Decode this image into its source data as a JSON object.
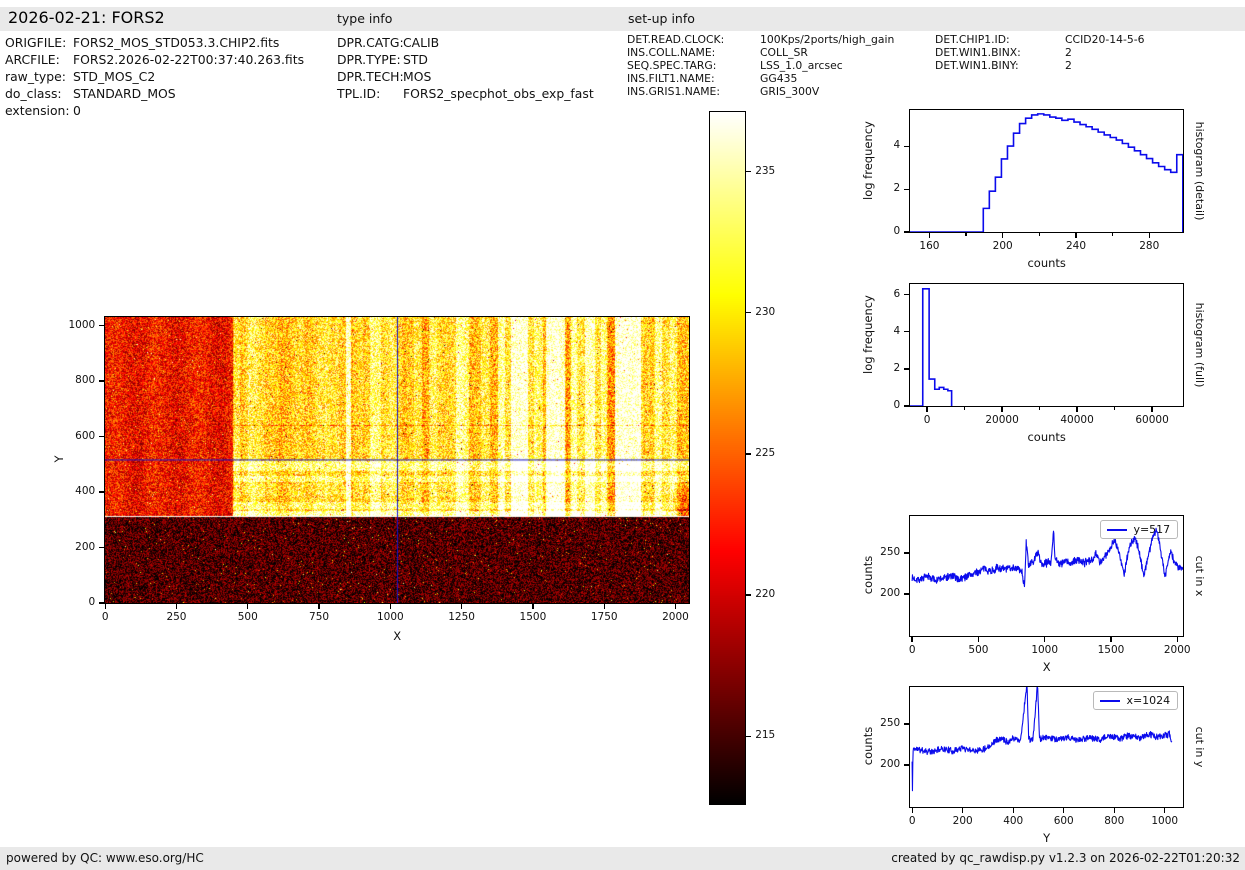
{
  "header": {
    "title": "2026-02-21: FORS2"
  },
  "file_info": {
    "rows": [
      {
        "key": "ORIGFILE:",
        "value": "FORS2_MOS_STD053.3.CHIP2.fits"
      },
      {
        "key": "ARCFILE:",
        "value": "FORS2.2026-02-22T00:37:40.263.fits"
      },
      {
        "key": "raw_type:",
        "value": "STD_MOS_C2"
      },
      {
        "key": "do_class:",
        "value": "STANDARD_MOS"
      },
      {
        "key": "extension:",
        "value": "0"
      }
    ]
  },
  "type_info": {
    "heading": "type info",
    "rows": [
      {
        "key": "DPR.CATG:",
        "value": "CALIB"
      },
      {
        "key": "DPR.TYPE:",
        "value": "STD"
      },
      {
        "key": "DPR.TECH:",
        "value": "MOS"
      },
      {
        "key": "TPL.ID:",
        "value": "FORS2_specphot_obs_exp_fast"
      }
    ]
  },
  "setup_info": {
    "heading": "set-up info",
    "col1": [
      {
        "key": "DET.READ.CLOCK:",
        "value": "100Kps/2ports/high_gain"
      },
      {
        "key": "INS.COLL.NAME:",
        "value": "COLL_SR"
      },
      {
        "key": "SEQ.SPEC.TARG:",
        "value": "LSS_1.0_arcsec"
      },
      {
        "key": "INS.FILT1.NAME:",
        "value": "GG435"
      },
      {
        "key": "INS.GRIS1.NAME:",
        "value": "GRIS_300V"
      }
    ],
    "col2": [
      {
        "key": "DET.CHIP1.ID:",
        "value": "CCID20-14-5-6"
      },
      {
        "key": "DET.WIN1.BINX:",
        "value": "2"
      },
      {
        "key": "DET.WIN1.BINY:",
        "value": "2"
      }
    ]
  },
  "footer": {
    "left": "powered by QC: www.eso.org/HC",
    "right": "created by qc_rawdisp.py v1.2.3 on 2026-02-22T01:20:32"
  },
  "colors": {
    "line": "#0b0bec",
    "crosshair": "#1212cc",
    "band_bg": "#e9e9e9"
  },
  "chart_data": [
    {
      "id": "raw_image",
      "type": "heatmap",
      "xlabel": "X",
      "ylabel": "Y",
      "xlim": [
        0,
        2048
      ],
      "ylim": [
        0,
        1030
      ],
      "xticks": [
        0,
        250,
        500,
        750,
        1000,
        1250,
        1500,
        1750,
        2000
      ],
      "yticks": [
        0,
        200,
        400,
        600,
        800,
        1000
      ],
      "colormap": "hot",
      "value_range": [
        212.6,
        237.1
      ],
      "crosshair": {
        "x": 1024,
        "y": 517
      },
      "features": {
        "white_row_y": 310,
        "dark_row_y": 640,
        "regions": [
          {
            "name": "bottom-dark-band",
            "y0": 0,
            "y1": 308,
            "x0": 0,
            "x1": 2048,
            "base": 215.3,
            "noise": 4.2,
            "salt": 0.012,
            "salt_boost": 10
          },
          {
            "name": "left-moderate",
            "y0": 312,
            "y1": 1030,
            "x0": 0,
            "x1": 450,
            "base": 221.8,
            "noise": 4.5,
            "salt": 0.012,
            "salt_boost": 7
          },
          {
            "name": "bright-spectral",
            "y0": 312,
            "y1": 1030,
            "x0": 450,
            "x1": 2048,
            "base": 229.2,
            "noise": 5.4,
            "pepper": 0.01,
            "pepper_drop": 9
          }
        ],
        "stripes": [
          [
            452,
            472,
            3
          ],
          [
            500,
            560,
            1.5
          ],
          [
            620,
            700,
            1
          ],
          [
            770,
            820,
            1.5
          ],
          [
            845,
            863,
            8
          ],
          [
            870,
            905,
            2
          ],
          [
            930,
            968,
            4
          ],
          [
            1000,
            1040,
            1
          ],
          [
            1085,
            1110,
            2.5
          ],
          [
            1135,
            1165,
            2.5
          ],
          [
            1230,
            1275,
            3.5
          ],
          [
            1320,
            1350,
            2.5
          ],
          [
            1378,
            1402,
            5
          ],
          [
            1425,
            1482,
            7
          ],
          [
            1505,
            1535,
            4
          ],
          [
            1545,
            1612,
            8
          ],
          [
            1615,
            1632,
            -2
          ],
          [
            1635,
            1655,
            4
          ],
          [
            1685,
            1718,
            5.5
          ],
          [
            1740,
            1762,
            4
          ],
          [
            1765,
            1788,
            -2
          ],
          [
            1790,
            1880,
            8
          ],
          [
            1885,
            1925,
            -2
          ],
          [
            1928,
            1952,
            4
          ],
          [
            1983,
            2005,
            3
          ]
        ],
        "bright_rows": [
          [
            313,
            332,
            5
          ],
          [
            340,
            362,
            3
          ],
          [
            385,
            430,
            1
          ],
          [
            437,
            458,
            3.5
          ],
          [
            475,
            510,
            4
          ]
        ],
        "dark_wedge": {
          "x0": 1975,
          "y0": 312,
          "y1": 445,
          "max_drop": 11
        }
      },
      "colorbar": {
        "ticks": [
          215,
          220,
          225,
          230,
          235
        ]
      }
    },
    {
      "id": "hist_detail",
      "type": "histogram-step",
      "side_label": "histogram (detail)",
      "xlabel": "counts",
      "ylabel": "log frequency",
      "xlim": [
        149.5,
        298.5
      ],
      "ylim": [
        0,
        5.68
      ],
      "xticks": [
        160,
        200,
        240,
        280
      ],
      "xminor": [
        180,
        220,
        260
      ],
      "yticks": [
        0,
        2,
        4
      ],
      "bins": {
        "start": 189.5,
        "width": 3.3,
        "values": [
          1.1,
          1.9,
          2.55,
          3.4,
          4.0,
          4.6,
          5.05,
          5.3,
          5.45,
          5.5,
          5.45,
          5.35,
          5.3,
          5.2,
          5.25,
          5.12,
          5.0,
          4.9,
          4.78,
          4.65,
          4.52,
          4.4,
          4.28,
          4.12,
          3.95,
          3.78,
          3.6,
          3.42,
          3.22,
          3.05,
          2.9,
          2.78,
          3.6
        ]
      }
    },
    {
      "id": "hist_full",
      "type": "histogram-step",
      "side_label": "histogram (full)",
      "xlabel": "counts",
      "ylabel": "log frequency",
      "xlim": [
        -4500,
        68300
      ],
      "ylim": [
        0,
        6.56
      ],
      "xticks": [
        0,
        20000,
        40000,
        60000
      ],
      "xminor": [
        10000,
        30000,
        50000
      ],
      "yticks": [
        0,
        2,
        4,
        6
      ],
      "steps": {
        "edges": [
          -1100,
          600,
          2100,
          3300,
          4500,
          5600,
          6600
        ],
        "values": [
          6.3,
          1.45,
          0.9,
          1.0,
          0.9,
          0.82
        ]
      }
    },
    {
      "id": "cut_x",
      "type": "line",
      "legend": "y=517",
      "side_label": "cut in x",
      "xlabel": "X",
      "ylabel": "counts",
      "xlim": [
        -15,
        2045
      ],
      "ylim": [
        148.8,
        295.1
      ],
      "xticks": [
        0,
        500,
        1000,
        1500,
        2000
      ],
      "yticks": [
        200,
        250
      ],
      "noise": {
        "amplitude": 5.5,
        "seed": 7
      },
      "points": [
        [
          0,
          219
        ],
        [
          60,
          218
        ],
        [
          120,
          221
        ],
        [
          180,
          217
        ],
        [
          250,
          220
        ],
        [
          300,
          222
        ],
        [
          350,
          218
        ],
        [
          400,
          221
        ],
        [
          450,
          224
        ],
        [
          500,
          227
        ],
        [
          550,
          231
        ],
        [
          600,
          228
        ],
        [
          650,
          232
        ],
        [
          700,
          230
        ],
        [
          750,
          233
        ],
        [
          800,
          231
        ],
        [
          830,
          226
        ],
        [
          848,
          208
        ],
        [
          862,
          262
        ],
        [
          880,
          235
        ],
        [
          920,
          240
        ],
        [
          945,
          252
        ],
        [
          980,
          236
        ],
        [
          1020,
          238
        ],
        [
          1050,
          240
        ],
        [
          1068,
          278
        ],
        [
          1080,
          244
        ],
        [
          1120,
          236
        ],
        [
          1160,
          240
        ],
        [
          1200,
          237
        ],
        [
          1250,
          242
        ],
        [
          1300,
          238
        ],
        [
          1350,
          241
        ],
        [
          1390,
          250
        ],
        [
          1420,
          237
        ],
        [
          1460,
          246
        ],
        [
          1500,
          258
        ],
        [
          1530,
          266
        ],
        [
          1560,
          252
        ],
        [
          1600,
          224
        ],
        [
          1640,
          258
        ],
        [
          1680,
          268
        ],
        [
          1710,
          256
        ],
        [
          1750,
          222
        ],
        [
          1790,
          252
        ],
        [
          1820,
          272
        ],
        [
          1850,
          278
        ],
        [
          1880,
          250
        ],
        [
          1910,
          222
        ],
        [
          1950,
          252
        ],
        [
          1980,
          240
        ],
        [
          2010,
          232
        ],
        [
          2048,
          230
        ]
      ]
    },
    {
      "id": "cut_y",
      "type": "line",
      "legend": "x=1024",
      "side_label": "cut in y",
      "xlabel": "Y",
      "ylabel": "counts",
      "xlim": [
        -8,
        1073
      ],
      "ylim": [
        148.8,
        295.1
      ],
      "xticks": [
        0,
        200,
        400,
        600,
        800,
        1000
      ],
      "yticks": [
        200,
        250
      ],
      "noise": {
        "amplitude": 4.5,
        "seed": 11
      },
      "points": [
        [
          0,
          228
        ],
        [
          1,
          152
        ],
        [
          4,
          220
        ],
        [
          40,
          218
        ],
        [
          80,
          216
        ],
        [
          120,
          220
        ],
        [
          160,
          217
        ],
        [
          200,
          221
        ],
        [
          240,
          218
        ],
        [
          280,
          219
        ],
        [
          310,
          224
        ],
        [
          330,
          230
        ],
        [
          360,
          232
        ],
        [
          380,
          228
        ],
        [
          400,
          233
        ],
        [
          430,
          230
        ],
        [
          455,
          300
        ],
        [
          462,
          232
        ],
        [
          470,
          231
        ],
        [
          480,
          233
        ],
        [
          497,
          300
        ],
        [
          505,
          231
        ],
        [
          540,
          234
        ],
        [
          580,
          231
        ],
        [
          620,
          233
        ],
        [
          660,
          230
        ],
        [
          700,
          234
        ],
        [
          740,
          231
        ],
        [
          780,
          235
        ],
        [
          820,
          232
        ],
        [
          860,
          236
        ],
        [
          900,
          233
        ],
        [
          940,
          237
        ],
        [
          980,
          234
        ],
        [
          1020,
          238
        ],
        [
          1030,
          226
        ]
      ]
    }
  ]
}
